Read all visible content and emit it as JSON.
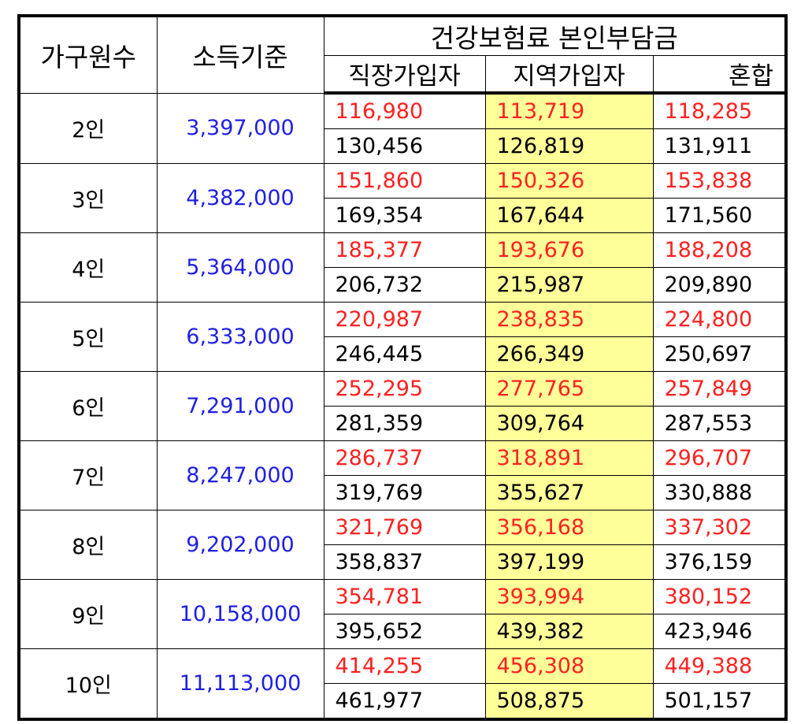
{
  "header": {
    "household_label": "가구원수",
    "income_label": "소득기준",
    "group_label": "건강보험료 본인부담금",
    "employee_label": "직장가입자",
    "regional_label": "지역가입자",
    "mixed_label": "혼합"
  },
  "rows": [
    {
      "household": "2인",
      "income": "3,397,000",
      "red": [
        "116,980",
        "113,719",
        "118,285"
      ],
      "black": [
        "130,456",
        "126,819",
        "131,911"
      ]
    },
    {
      "household": "3인",
      "income": "4,382,000",
      "red": [
        "151,860",
        "150,326",
        "153,838"
      ],
      "black": [
        "169,354",
        "167,644",
        "171,560"
      ]
    },
    {
      "household": "4인",
      "income": "5,364,000",
      "red": [
        "185,377",
        "193,676",
        "188,208"
      ],
      "black": [
        "206,732",
        "215,987",
        "209,890"
      ]
    },
    {
      "household": "5인",
      "income": "6,333,000",
      "red": [
        "220,987",
        "238,835",
        "224,800"
      ],
      "black": [
        "246,445",
        "266,349",
        "250,697"
      ]
    },
    {
      "household": "6인",
      "income": "7,291,000",
      "red": [
        "252,295",
        "277,765",
        "257,849"
      ],
      "black": [
        "281,359",
        "309,764",
        "287,553"
      ]
    },
    {
      "household": "7인",
      "income": "8,247,000",
      "red": [
        "286,737",
        "318,891",
        "296,707"
      ],
      "black": [
        "319,769",
        "355,627",
        "330,888"
      ]
    },
    {
      "household": "8인",
      "income": "9,202,000",
      "red": [
        "321,769",
        "356,168",
        "337,302"
      ],
      "black": [
        "358,837",
        "397,199",
        "376,159"
      ]
    },
    {
      "household": "9인",
      "income": "10,158,000",
      "red": [
        "354,781",
        "393,994",
        "380,152"
      ],
      "black": [
        "395,652",
        "439,382",
        "423,946"
      ]
    },
    {
      "household": "10인",
      "income": "11,113,000",
      "red": [
        "414,255",
        "456,308",
        "449,388"
      ],
      "black": [
        "461,977",
        "508,875",
        "501,157"
      ]
    }
  ],
  "colors": {
    "income_text": "#2020e0",
    "red_value_text": "#ff2020",
    "regional_highlight": "#ffff99"
  }
}
